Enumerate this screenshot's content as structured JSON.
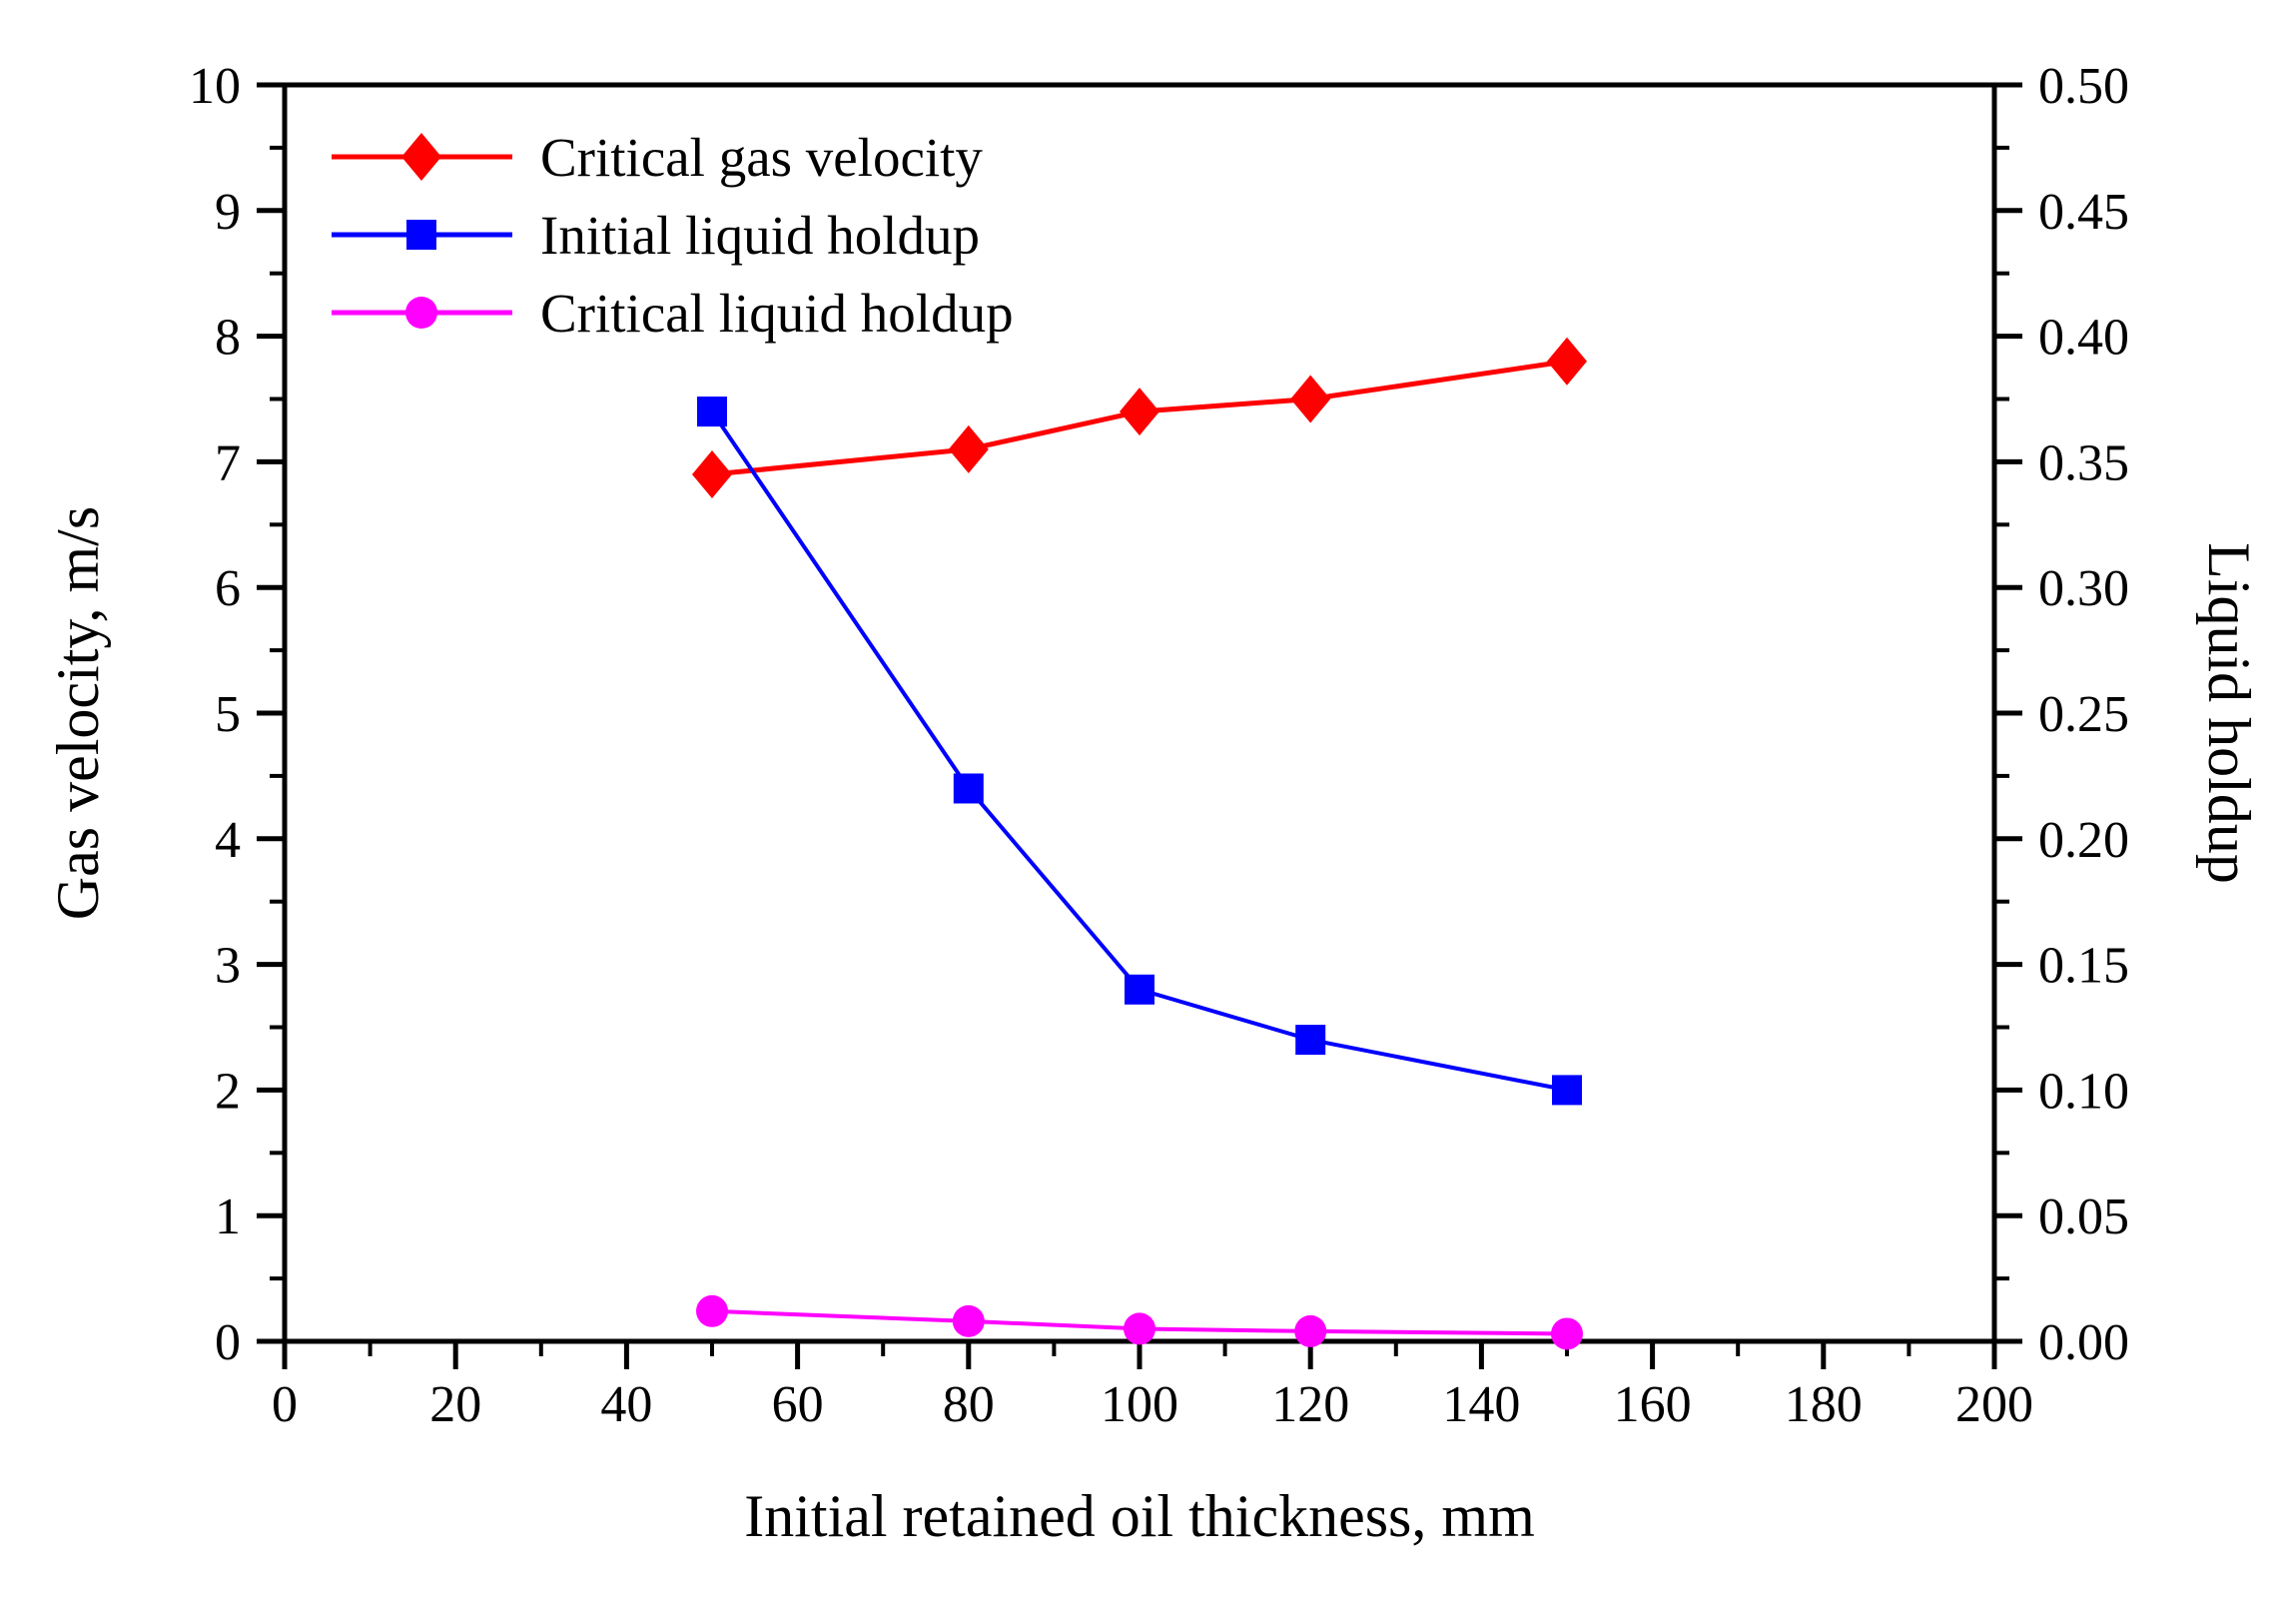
{
  "figure": {
    "x_axis_title": "Initial retained oil thickness, mm",
    "y_left_axis_title": "Gas velocity, m/s",
    "y_right_axis_title": "Liquid holdup"
  },
  "legend": {
    "position": "top-left-inside",
    "items": [
      {
        "label": "Critical gas velocity",
        "color": "#ff0000",
        "marker": "diamond"
      },
      {
        "label": "Initial liquid holdup",
        "color": "#0000ff",
        "marker": "square"
      },
      {
        "label": "Critical liquid holdup",
        "color": "#ff00ff",
        "marker": "circle"
      }
    ]
  },
  "chart_data": {
    "type": "line",
    "title": "",
    "xlabel": "Initial retained oil thickness, mm",
    "ylabel_left": "Gas velocity, m/s",
    "ylabel_right": "Liquid holdup",
    "grid": false,
    "x": [
      50,
      80,
      100,
      120,
      150
    ],
    "series": [
      {
        "name": "Critical gas velocity",
        "axis": "left",
        "color": "#ff0000",
        "marker": "diamond",
        "values": [
          6.9,
          7.1,
          7.4,
          7.5,
          7.8
        ]
      },
      {
        "name": "Initial liquid holdup",
        "axis": "right",
        "color": "#0000ff",
        "marker": "square",
        "values": [
          0.37,
          0.22,
          0.14,
          0.12,
          0.1
        ]
      },
      {
        "name": "Critical liquid holdup",
        "axis": "right",
        "color": "#ff00ff",
        "marker": "circle",
        "values": [
          0.012,
          0.008,
          0.005,
          0.004,
          0.003
        ]
      }
    ],
    "x_axis": {
      "min": 0,
      "max": 200,
      "major_step": 20,
      "minor_step": 10,
      "tick_labels": [
        "0",
        "20",
        "40",
        "60",
        "80",
        "100",
        "120",
        "140",
        "160",
        "180",
        "200"
      ]
    },
    "y_left_axis": {
      "min": 0,
      "max": 10,
      "major_step": 1,
      "minor_step": 0.5,
      "tick_labels": [
        "0",
        "1",
        "2",
        "3",
        "4",
        "5",
        "6",
        "7",
        "8",
        "9",
        "10"
      ]
    },
    "y_right_axis": {
      "min": 0.0,
      "max": 0.5,
      "major_step": 0.05,
      "minor_step": 0.025,
      "tick_labels": [
        "0.00",
        "0.05",
        "0.10",
        "0.15",
        "0.20",
        "0.25",
        "0.30",
        "0.35",
        "0.40",
        "0.45",
        "0.50"
      ]
    }
  }
}
